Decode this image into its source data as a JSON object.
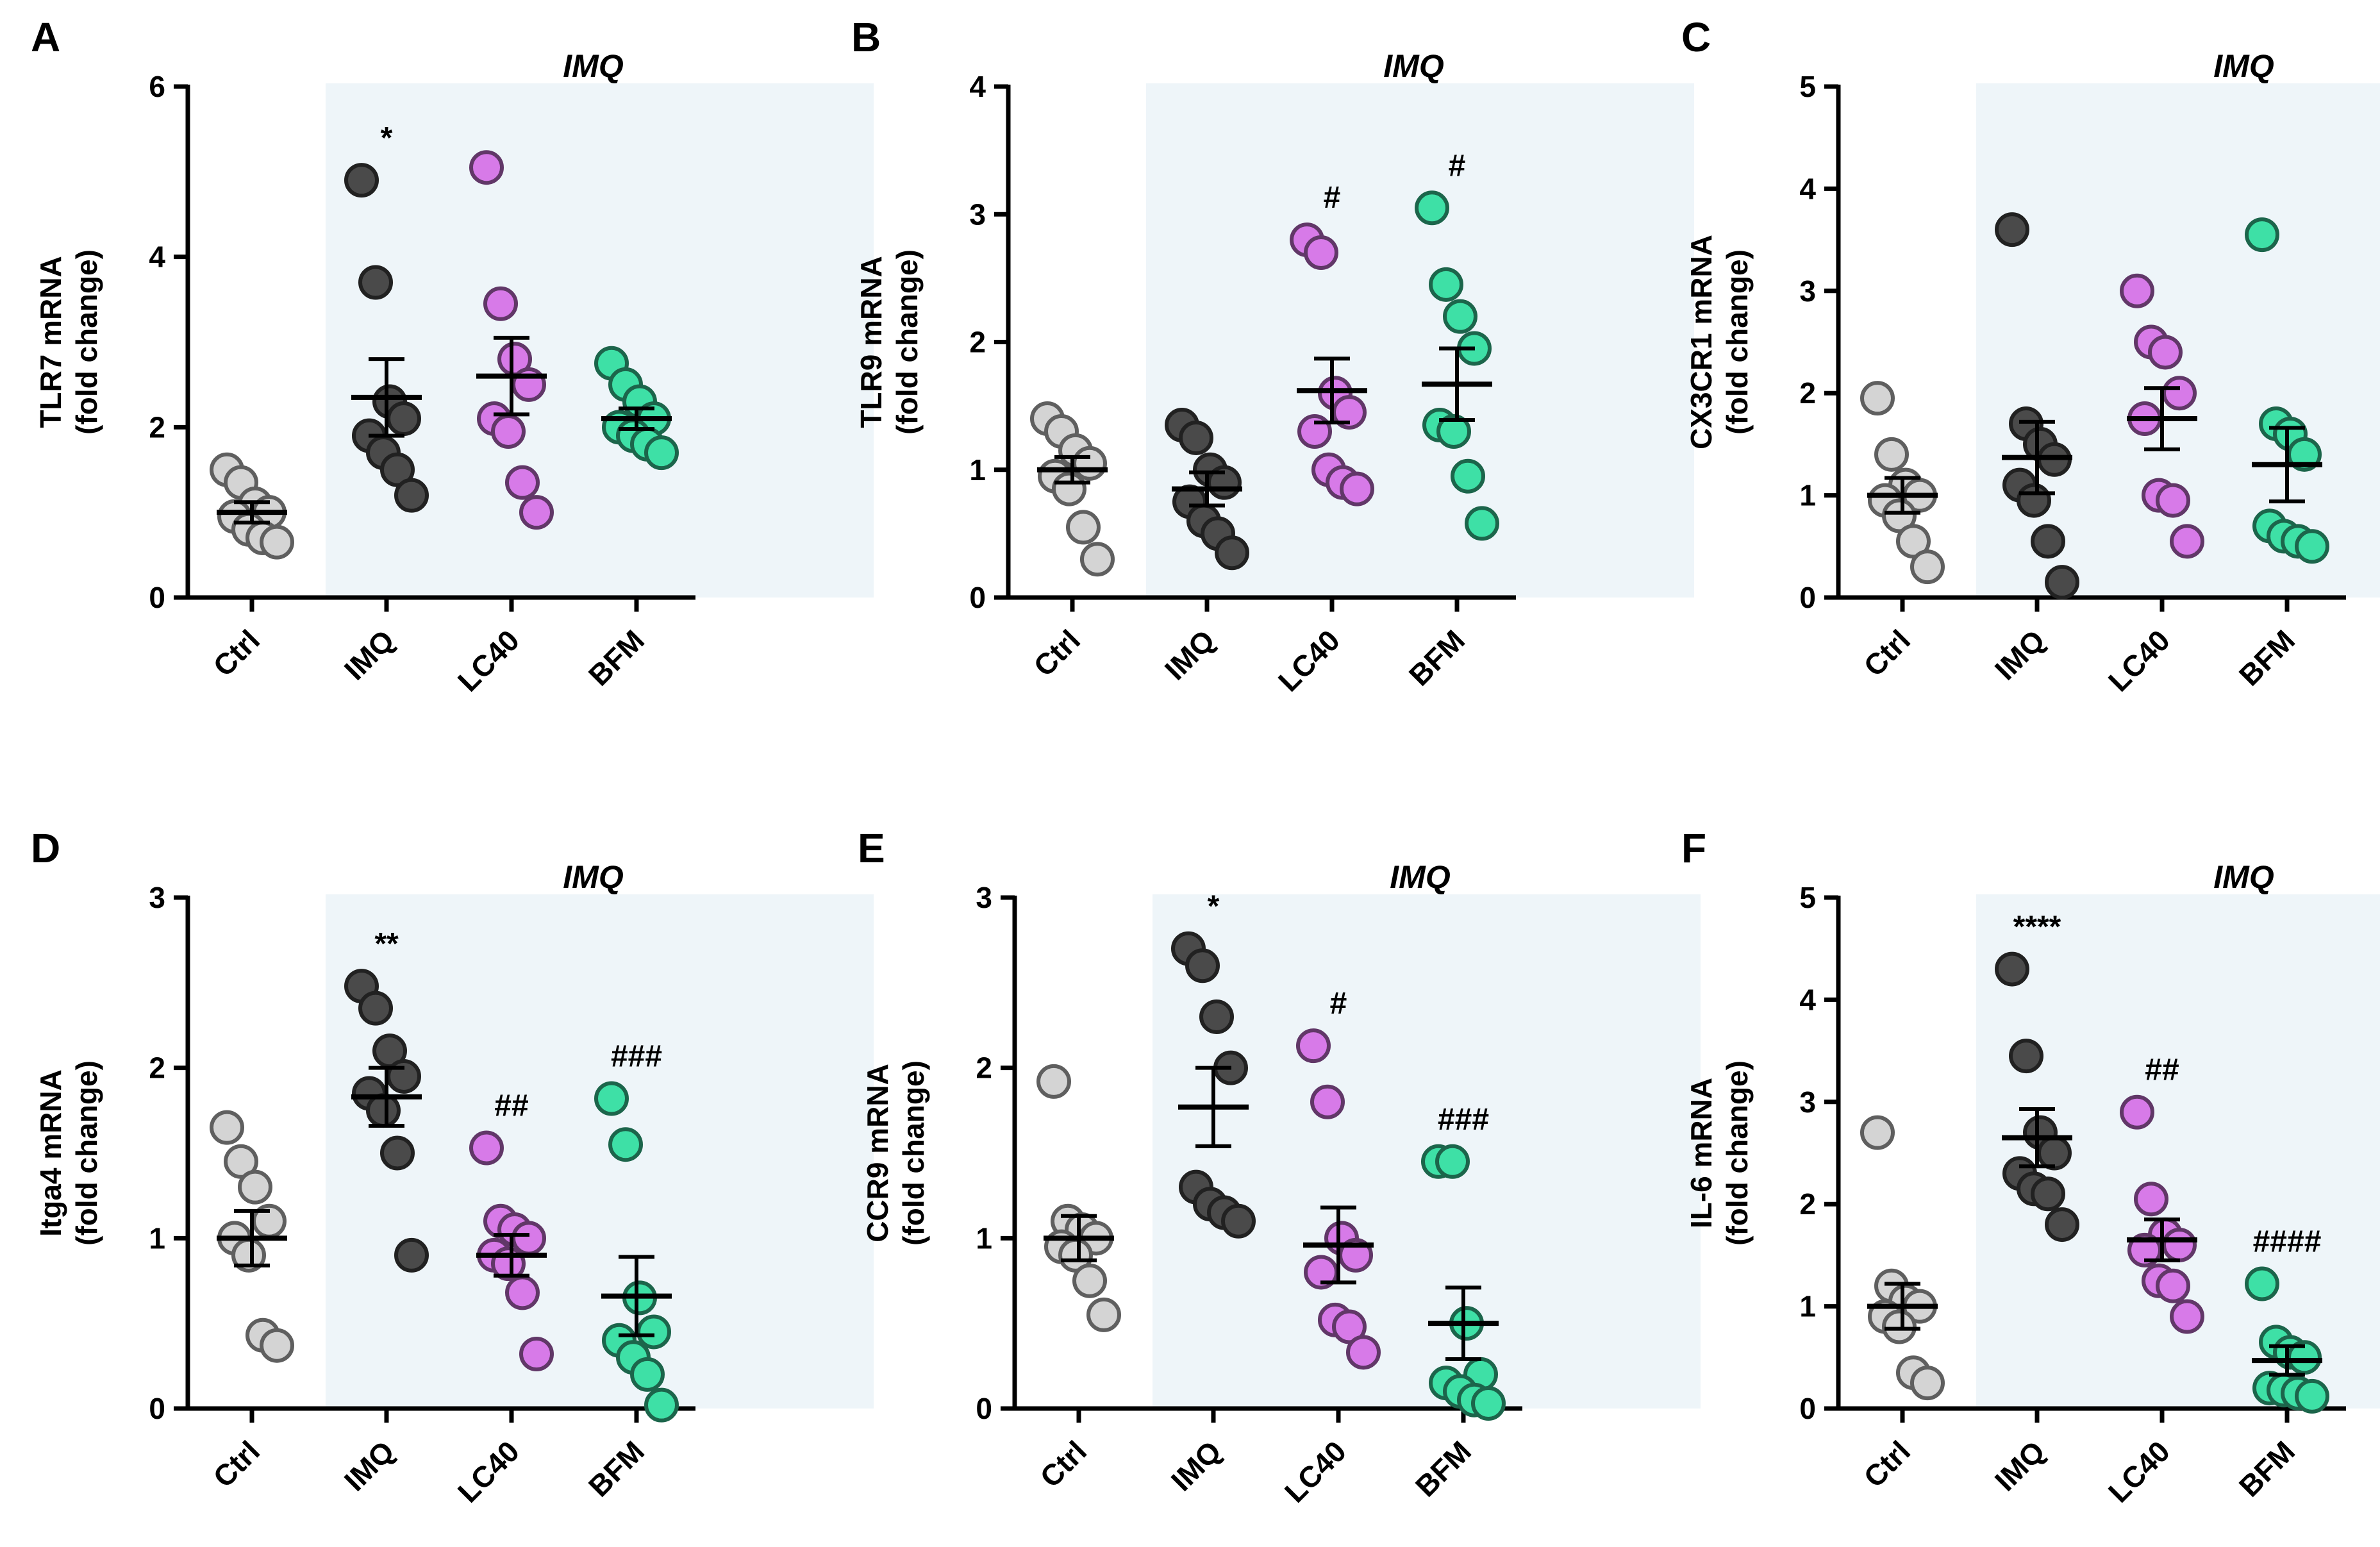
{
  "figure": {
    "colors": {
      "Ctrl": "#d4d4d4",
      "IMQ": "#4a4a4a",
      "LC40": "#d77ae8",
      "BFM": "#3ee0a6",
      "shade": "#eef5f9"
    }
  },
  "chart_data": [
    {
      "type": "scatter",
      "panel": "A",
      "title": "",
      "imq_label": "IMQ",
      "ylabel_line1": "TLR7 mRNA",
      "ylabel_line2": "(fold change)",
      "categories": [
        "Ctrl",
        "IMQ",
        "LC40",
        "BFM"
      ],
      "ylim": [
        0,
        6
      ],
      "yticks": [
        "0",
        "2",
        "4",
        "6"
      ],
      "series": [
        {
          "name": "Ctrl",
          "points": [
            1.5,
            1.35,
            1.1,
            1.0,
            0.95,
            0.8,
            0.7,
            0.65
          ],
          "mean": 1.0,
          "sem": 0.12
        },
        {
          "name": "IMQ",
          "points": [
            4.9,
            3.7,
            2.3,
            2.1,
            1.9,
            1.7,
            1.5,
            1.2
          ],
          "mean": 2.35,
          "sem": 0.45,
          "sig": "*"
        },
        {
          "name": "LC40",
          "points": [
            5.05,
            3.45,
            2.8,
            2.5,
            2.1,
            1.95,
            1.35,
            1.0
          ],
          "mean": 2.6,
          "sem": 0.45
        },
        {
          "name": "BFM",
          "points": [
            2.75,
            2.5,
            2.3,
            2.1,
            2.0,
            1.9,
            1.8,
            1.7
          ],
          "mean": 2.1,
          "sem": 0.12
        }
      ]
    },
    {
      "type": "scatter",
      "panel": "B",
      "title": "",
      "imq_label": "IMQ",
      "ylabel_line1": "TLR9 mRNA",
      "ylabel_line2": "(fold change)",
      "categories": [
        "Ctrl",
        "IMQ",
        "LC40",
        "BFM"
      ],
      "ylim": [
        0,
        4
      ],
      "yticks": [
        "0",
        "1",
        "2",
        "3",
        "4"
      ],
      "series": [
        {
          "name": "Ctrl",
          "points": [
            1.4,
            1.3,
            1.15,
            1.05,
            0.95,
            0.85,
            0.55,
            0.3
          ],
          "mean": 1.0,
          "sem": 0.1
        },
        {
          "name": "IMQ",
          "points": [
            1.35,
            1.25,
            1.0,
            0.9,
            0.75,
            0.6,
            0.5,
            0.35
          ],
          "mean": 0.85,
          "sem": 0.13
        },
        {
          "name": "LC40",
          "points": [
            2.8,
            2.7,
            1.6,
            1.45,
            1.3,
            1.0,
            0.9,
            0.85
          ],
          "mean": 1.62,
          "sem": 0.25,
          "sig": "#"
        },
        {
          "name": "BFM",
          "points": [
            3.05,
            2.45,
            2.2,
            1.95,
            1.35,
            1.3,
            0.95,
            0.58
          ],
          "mean": 1.67,
          "sem": 0.28,
          "sig": "#"
        }
      ]
    },
    {
      "type": "scatter",
      "panel": "C",
      "title": "",
      "imq_label": "IMQ",
      "ylabel_line1": "CX3CR1 mRNA",
      "ylabel_line2": "(fold change)",
      "categories": [
        "Ctrl",
        "IMQ",
        "LC40",
        "BFM"
      ],
      "ylim": [
        0,
        5
      ],
      "yticks": [
        "0",
        "1",
        "2",
        "3",
        "4",
        "5"
      ],
      "series": [
        {
          "name": "Ctrl",
          "points": [
            1.95,
            1.4,
            1.1,
            1.0,
            0.95,
            0.8,
            0.55,
            0.3
          ],
          "mean": 1.0,
          "sem": 0.17
        },
        {
          "name": "IMQ",
          "points": [
            3.6,
            1.7,
            1.5,
            1.35,
            1.1,
            0.95,
            0.55,
            0.15
          ],
          "mean": 1.37,
          "sem": 0.35
        },
        {
          "name": "LC40",
          "points": [
            3.0,
            2.5,
            2.4,
            2.0,
            1.75,
            1.0,
            0.95,
            0.55
          ],
          "mean": 1.75,
          "sem": 0.3
        },
        {
          "name": "BFM",
          "points": [
            3.55,
            1.7,
            1.6,
            1.4,
            0.7,
            0.6,
            0.55,
            0.5
          ],
          "mean": 1.3,
          "sem": 0.36
        }
      ]
    },
    {
      "type": "scatter",
      "panel": "D",
      "title": "",
      "imq_label": "IMQ",
      "ylabel_line1": "Itga4 mRNA",
      "ylabel_line2": "(fold change)",
      "categories": [
        "Ctrl",
        "IMQ",
        "LC40",
        "BFM"
      ],
      "ylim": [
        0,
        3
      ],
      "yticks": [
        "0",
        "1",
        "2",
        "3"
      ],
      "series": [
        {
          "name": "Ctrl",
          "points": [
            1.65,
            1.45,
            1.3,
            1.1,
            1.0,
            0.9,
            0.43,
            0.37
          ],
          "mean": 1.0,
          "sem": 0.16
        },
        {
          "name": "IMQ",
          "points": [
            2.48,
            2.35,
            2.1,
            1.95,
            1.85,
            1.75,
            1.5,
            0.9
          ],
          "mean": 1.83,
          "sem": 0.17,
          "sig": "**"
        },
        {
          "name": "LC40",
          "points": [
            1.53,
            1.1,
            1.05,
            1.0,
            0.9,
            0.85,
            0.68,
            0.32
          ],
          "mean": 0.9,
          "sem": 0.12,
          "sig": "##"
        },
        {
          "name": "BFM",
          "points": [
            1.82,
            1.55,
            0.65,
            0.45,
            0.4,
            0.3,
            0.2,
            0.02
          ],
          "mean": 0.66,
          "sem": 0.23,
          "sig": "###"
        }
      ]
    },
    {
      "type": "scatter",
      "panel": "E",
      "title": "",
      "imq_label": "IMQ",
      "ylabel_line1": "CCR9 mRNA",
      "ylabel_line2": "(fold change)",
      "categories": [
        "Ctrl",
        "IMQ",
        "LC40",
        "BFM"
      ],
      "ylim": [
        0,
        3
      ],
      "yticks": [
        "0",
        "1",
        "2",
        "3"
      ],
      "series": [
        {
          "name": "Ctrl",
          "points": [
            1.92,
            1.1,
            1.05,
            1.0,
            0.95,
            0.9,
            0.75,
            0.55
          ],
          "mean": 1.0,
          "sem": 0.13
        },
        {
          "name": "IMQ",
          "points": [
            2.7,
            2.6,
            2.3,
            2.0,
            1.3,
            1.2,
            1.15,
            1.1
          ],
          "mean": 1.77,
          "sem": 0.23,
          "sig": "*"
        },
        {
          "name": "LC40",
          "points": [
            2.13,
            1.8,
            1.0,
            0.9,
            0.8,
            0.52,
            0.48,
            0.33
          ],
          "mean": 0.96,
          "sem": 0.22,
          "sig": "#"
        },
        {
          "name": "BFM",
          "points": [
            1.45,
            1.45,
            0.5,
            0.2,
            0.15,
            0.1,
            0.05,
            0.03
          ],
          "mean": 0.5,
          "sem": 0.21,
          "sig": "###"
        }
      ]
    },
    {
      "type": "scatter",
      "panel": "F",
      "title": "",
      "imq_label": "IMQ",
      "ylabel_line1": "IL-6 mRNA",
      "ylabel_line2": "(fold change)",
      "categories": [
        "Ctrl",
        "IMQ",
        "LC40",
        "BFM"
      ],
      "ylim": [
        0,
        5
      ],
      "yticks": [
        "0",
        "1",
        "2",
        "3",
        "4",
        "5"
      ],
      "series": [
        {
          "name": "Ctrl",
          "points": [
            2.7,
            1.2,
            1.05,
            1.0,
            0.9,
            0.8,
            0.35,
            0.25
          ],
          "mean": 1.0,
          "sem": 0.22
        },
        {
          "name": "IMQ",
          "points": [
            4.3,
            3.45,
            2.7,
            2.5,
            2.3,
            2.15,
            2.1,
            1.8
          ],
          "mean": 2.65,
          "sem": 0.28,
          "sig": "****"
        },
        {
          "name": "LC40",
          "points": [
            2.9,
            2.05,
            1.7,
            1.6,
            1.55,
            1.25,
            1.2,
            0.9
          ],
          "mean": 1.65,
          "sem": 0.2,
          "sig": "##"
        },
        {
          "name": "BFM",
          "points": [
            1.22,
            0.65,
            0.55,
            0.5,
            0.2,
            0.18,
            0.15,
            0.12
          ],
          "mean": 0.47,
          "sem": 0.14,
          "sig": "####"
        }
      ]
    }
  ]
}
